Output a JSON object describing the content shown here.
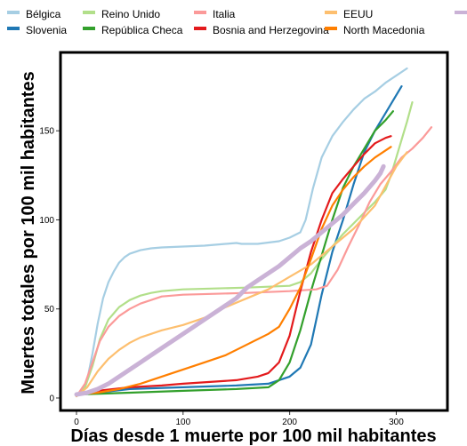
{
  "chart_data": {
    "type": "line",
    "title": "",
    "xlabel": "Días desde 1 muerte por 100 mil habitantes",
    "ylabel": "Muertes totales por 100 mil habitantes",
    "xlim": [
      -15,
      348
    ],
    "ylim": [
      -7,
      194
    ],
    "xticks": [
      0,
      100,
      200,
      300
    ],
    "yticks": [
      0,
      50,
      100,
      150
    ],
    "grid": false,
    "legend_position": "top",
    "series": [
      {
        "name": "Bélgica",
        "color": "#a6cee3",
        "points": [
          [
            0,
            1
          ],
          [
            5,
            3
          ],
          [
            10,
            10
          ],
          [
            15,
            25
          ],
          [
            20,
            42
          ],
          [
            25,
            56
          ],
          [
            30,
            65
          ],
          [
            35,
            71
          ],
          [
            40,
            76
          ],
          [
            45,
            79
          ],
          [
            50,
            81
          ],
          [
            60,
            83
          ],
          [
            70,
            84
          ],
          [
            80,
            84.5
          ],
          [
            100,
            85
          ],
          [
            120,
            85.5
          ],
          [
            150,
            87
          ],
          [
            155,
            86.5
          ],
          [
            170,
            86.5
          ],
          [
            190,
            88
          ],
          [
            200,
            90
          ],
          [
            210,
            93
          ],
          [
            215,
            100
          ],
          [
            222,
            118
          ],
          [
            230,
            135
          ],
          [
            240,
            147
          ],
          [
            250,
            155
          ],
          [
            260,
            162
          ],
          [
            270,
            168
          ],
          [
            280,
            172
          ],
          [
            290,
            177
          ],
          [
            300,
            181
          ],
          [
            310,
            185
          ]
        ]
      },
      {
        "name": "Slovenia",
        "color": "#1f78b4",
        "points": [
          [
            0,
            2
          ],
          [
            20,
            3
          ],
          [
            50,
            5
          ],
          [
            100,
            6
          ],
          [
            150,
            7
          ],
          [
            180,
            8
          ],
          [
            200,
            12
          ],
          [
            210,
            17
          ],
          [
            220,
            30
          ],
          [
            230,
            58
          ],
          [
            240,
            82
          ],
          [
            250,
            100
          ],
          [
            260,
            120
          ],
          [
            270,
            138
          ],
          [
            280,
            150
          ],
          [
            290,
            160
          ],
          [
            300,
            170
          ],
          [
            305,
            175
          ]
        ]
      },
      {
        "name": "Reino Unido",
        "color": "#b2df8a",
        "points": [
          [
            0,
            1
          ],
          [
            8,
            6
          ],
          [
            15,
            18
          ],
          [
            22,
            33
          ],
          [
            30,
            44
          ],
          [
            40,
            51
          ],
          [
            50,
            55
          ],
          [
            60,
            57.5
          ],
          [
            70,
            59
          ],
          [
            80,
            60
          ],
          [
            100,
            61
          ],
          [
            130,
            61.5
          ],
          [
            160,
            62
          ],
          [
            180,
            62.5
          ],
          [
            200,
            63
          ],
          [
            210,
            65
          ],
          [
            220,
            70
          ],
          [
            230,
            78
          ],
          [
            240,
            85
          ],
          [
            250,
            92
          ],
          [
            260,
            98
          ],
          [
            270,
            104
          ],
          [
            280,
            110
          ],
          [
            290,
            117
          ],
          [
            295,
            125
          ],
          [
            300,
            135
          ],
          [
            305,
            145
          ],
          [
            310,
            155
          ],
          [
            315,
            166
          ]
        ]
      },
      {
        "name": "República Checa",
        "color": "#33a02c",
        "points": [
          [
            0,
            2
          ],
          [
            50,
            3
          ],
          [
            100,
            4
          ],
          [
            150,
            5
          ],
          [
            180,
            6
          ],
          [
            190,
            10
          ],
          [
            200,
            20
          ],
          [
            210,
            38
          ],
          [
            220,
            60
          ],
          [
            230,
            80
          ],
          [
            240,
            100
          ],
          [
            250,
            118
          ],
          [
            260,
            130
          ],
          [
            270,
            140
          ],
          [
            280,
            150
          ],
          [
            290,
            156
          ],
          [
            297,
            161
          ]
        ]
      },
      {
        "name": "Italia",
        "color": "#fb9a99",
        "points": [
          [
            0,
            1
          ],
          [
            8,
            8
          ],
          [
            15,
            20
          ],
          [
            22,
            32
          ],
          [
            30,
            40
          ],
          [
            40,
            46
          ],
          [
            50,
            50
          ],
          [
            60,
            53
          ],
          [
            70,
            55
          ],
          [
            80,
            57
          ],
          [
            100,
            58
          ],
          [
            130,
            58.5
          ],
          [
            160,
            59
          ],
          [
            200,
            60
          ],
          [
            225,
            61
          ],
          [
            235,
            63
          ],
          [
            245,
            72
          ],
          [
            255,
            85
          ],
          [
            265,
            97
          ],
          [
            275,
            110
          ],
          [
            285,
            120
          ],
          [
            295,
            127
          ],
          [
            305,
            135
          ],
          [
            315,
            140
          ],
          [
            325,
            146
          ],
          [
            333,
            152
          ]
        ]
      },
      {
        "name": "Bosnia and Herzegovina",
        "color": "#e31a1c",
        "points": [
          [
            0,
            2
          ],
          [
            20,
            4
          ],
          [
            50,
            6
          ],
          [
            80,
            7
          ],
          [
            100,
            8
          ],
          [
            150,
            10
          ],
          [
            170,
            12
          ],
          [
            180,
            14
          ],
          [
            190,
            20
          ],
          [
            200,
            35
          ],
          [
            210,
            60
          ],
          [
            220,
            82
          ],
          [
            230,
            100
          ],
          [
            240,
            115
          ],
          [
            250,
            123
          ],
          [
            260,
            130
          ],
          [
            270,
            137
          ],
          [
            280,
            143
          ],
          [
            290,
            146
          ],
          [
            295,
            147
          ]
        ]
      },
      {
        "name": "EEUU",
        "color": "#fdbf6f",
        "points": [
          [
            0,
            1
          ],
          [
            10,
            6
          ],
          [
            20,
            15
          ],
          [
            30,
            22
          ],
          [
            40,
            27
          ],
          [
            50,
            31
          ],
          [
            60,
            34
          ],
          [
            70,
            36
          ],
          [
            80,
            38
          ],
          [
            100,
            41
          ],
          [
            120,
            45
          ],
          [
            140,
            51
          ],
          [
            160,
            56
          ],
          [
            180,
            61
          ],
          [
            200,
            68
          ],
          [
            220,
            75
          ],
          [
            240,
            85
          ],
          [
            260,
            95
          ],
          [
            280,
            108
          ],
          [
            300,
            130
          ],
          [
            310,
            138
          ]
        ]
      },
      {
        "name": "North Macedonia",
        "color": "#ff7f00",
        "points": [
          [
            0,
            2
          ],
          [
            20,
            3
          ],
          [
            40,
            5
          ],
          [
            60,
            8
          ],
          [
            80,
            12
          ],
          [
            100,
            16
          ],
          [
            120,
            20
          ],
          [
            140,
            24
          ],
          [
            150,
            27
          ],
          [
            160,
            30
          ],
          [
            170,
            33
          ],
          [
            180,
            36
          ],
          [
            190,
            40
          ],
          [
            200,
            50
          ],
          [
            210,
            62
          ],
          [
            220,
            78
          ],
          [
            230,
            95
          ],
          [
            240,
            108
          ],
          [
            250,
            117
          ],
          [
            260,
            124
          ],
          [
            270,
            130
          ],
          [
            280,
            135
          ],
          [
            290,
            139
          ],
          [
            295,
            141
          ]
        ]
      },
      {
        "name": "",
        "color": "#cab2d6",
        "width": 5,
        "points": [
          [
            0,
            2
          ],
          [
            10,
            3
          ],
          [
            20,
            5
          ],
          [
            30,
            8
          ],
          [
            40,
            12
          ],
          [
            50,
            16
          ],
          [
            60,
            20
          ],
          [
            70,
            24
          ],
          [
            80,
            28
          ],
          [
            90,
            32
          ],
          [
            100,
            36
          ],
          [
            110,
            40
          ],
          [
            120,
            44
          ],
          [
            130,
            48
          ],
          [
            140,
            52
          ],
          [
            150,
            56
          ],
          [
            160,
            62
          ],
          [
            170,
            66
          ],
          [
            180,
            70
          ],
          [
            190,
            74
          ],
          [
            200,
            79
          ],
          [
            210,
            84
          ],
          [
            220,
            88
          ],
          [
            230,
            93
          ],
          [
            240,
            98
          ],
          [
            250,
            103
          ],
          [
            260,
            109
          ],
          [
            270,
            115
          ],
          [
            280,
            122
          ],
          [
            285,
            126
          ],
          [
            288,
            130
          ]
        ]
      }
    ]
  }
}
